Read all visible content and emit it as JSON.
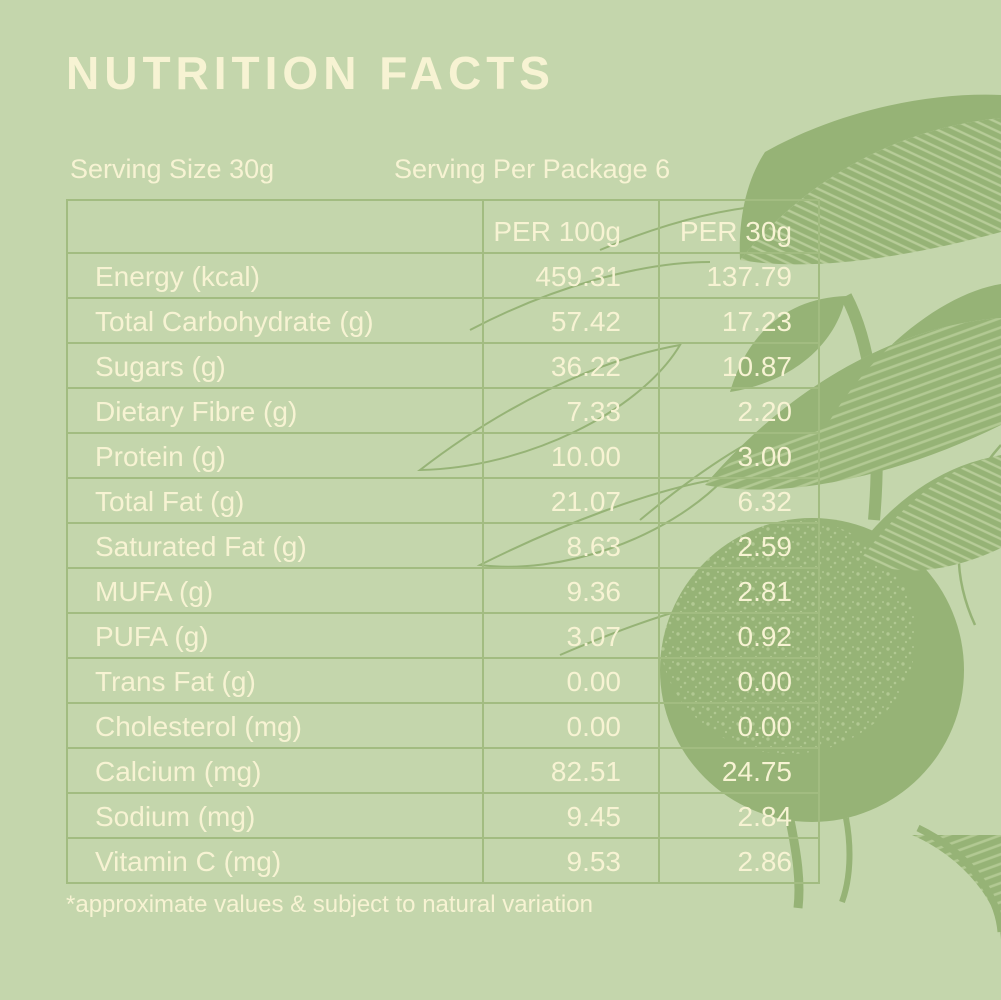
{
  "colors": {
    "background": "#c4d6ac",
    "illustration_green": "#96b376",
    "illustration_hatch_light": "#b7cc98",
    "table_border": "#a2bc81",
    "text_cream": "#f7f3d3"
  },
  "header": {
    "title": "NUTRITION FACTS"
  },
  "serving": {
    "size": "Serving Size 30g",
    "per_package": "Serving Per Package 6"
  },
  "table": {
    "columns": [
      "",
      "PER 100g",
      "PER 30g"
    ],
    "rows": [
      {
        "label": "Energy (kcal)",
        "per100": "459.31",
        "per30": "137.79"
      },
      {
        "label": "Total Carbohydrate (g)",
        "per100": "57.42",
        "per30": "17.23"
      },
      {
        "label": "Sugars (g)",
        "per100": "36.22",
        "per30": "10.87"
      },
      {
        "label": "Dietary Fibre (g)",
        "per100": "7.33",
        "per30": "2.20"
      },
      {
        "label": "Protein (g)",
        "per100": "10.00",
        "per30": "3.00"
      },
      {
        "label": "Total Fat (g)",
        "per100": "21.07",
        "per30": "6.32"
      },
      {
        "label": "Saturated Fat (g)",
        "per100": "8.63",
        "per30": "2.59"
      },
      {
        "label": "MUFA (g)",
        "per100": "9.36",
        "per30": "2.81"
      },
      {
        "label": "PUFA (g)",
        "per100": "3.07",
        "per30": "0.92"
      },
      {
        "label": "Trans Fat (g)",
        "per100": "0.00",
        "per30": "0.00"
      },
      {
        "label": "Cholesterol (mg)",
        "per100": "0.00",
        "per30": "0.00"
      },
      {
        "label": "Calcium (mg)",
        "per100": "82.51",
        "per30": "24.75"
      },
      {
        "label": "Sodium (mg)",
        "per100": "9.45",
        "per30": "2.84"
      },
      {
        "label": "Vitamin C (mg)",
        "per100": "9.53",
        "per30": "2.86"
      }
    ]
  },
  "footnote": "*approximate values & subject to natural variation",
  "illustration": {
    "elements": [
      "leaf-icon",
      "fruit-icon",
      "branch-icon"
    ]
  }
}
